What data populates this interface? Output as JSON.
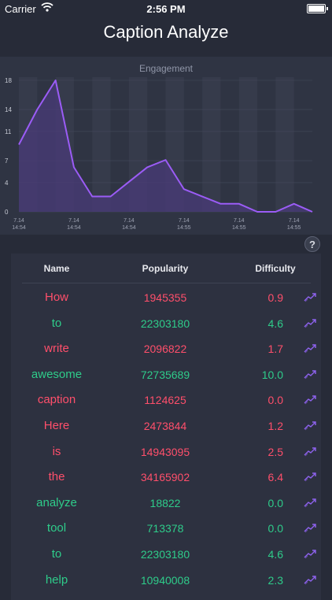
{
  "status_bar": {
    "carrier": "Carrier",
    "time": "2:56 PM"
  },
  "nav": {
    "title": "Caption Analyze"
  },
  "colors": {
    "good": "#2ecc8a",
    "bad": "#ff4f6b",
    "line": "#9b5cf6",
    "fill": "#4a3b78",
    "trend_icon": "#8f63f0"
  },
  "chart_data": {
    "type": "area",
    "title": "Engagement",
    "xlabel": "",
    "ylabel": "",
    "ylim": [
      0,
      18
    ],
    "y_ticks": [
      "0",
      "4",
      "7",
      "11",
      "14",
      "18"
    ],
    "x_tick_labels": [
      {
        "index": 0,
        "line1": "7.14",
        "line2": "14:54"
      },
      {
        "index": 3,
        "line1": "7.14",
        "line2": "14:54"
      },
      {
        "index": 6,
        "line1": "7.14",
        "line2": "14:54"
      },
      {
        "index": 9,
        "line1": "7.14",
        "line2": "14:55"
      },
      {
        "index": 12,
        "line1": "7.14",
        "line2": "14:55"
      },
      {
        "index": 15,
        "line1": "7.14",
        "line2": "14:55"
      }
    ],
    "grid": true,
    "values": [
      9.2,
      14,
      18,
      6.1,
      2.1,
      2.1,
      4.1,
      6.1,
      7.1,
      3.1,
      2.1,
      1.1,
      1.1,
      0,
      0,
      1.1,
      0
    ]
  },
  "help_button": {
    "label": "?",
    "icon": "help-icon"
  },
  "table": {
    "headers": {
      "name": "Name",
      "popularity": "Popularity",
      "difficulty": "Difficulty"
    },
    "trend_icon": "trend-up-icon",
    "rows": [
      {
        "name": "How",
        "popularity": "1945355",
        "difficulty": "0.9",
        "status": "bad"
      },
      {
        "name": "to",
        "popularity": "22303180",
        "difficulty": "4.6",
        "status": "good"
      },
      {
        "name": "write",
        "popularity": "2096822",
        "difficulty": "1.7",
        "status": "bad"
      },
      {
        "name": "awesome",
        "popularity": "72735689",
        "difficulty": "10.0",
        "status": "good"
      },
      {
        "name": "caption",
        "popularity": "1124625",
        "difficulty": "0.0",
        "status": "bad"
      },
      {
        "name": "Here",
        "popularity": "2473844",
        "difficulty": "1.2",
        "status": "bad"
      },
      {
        "name": "is",
        "popularity": "14943095",
        "difficulty": "2.5",
        "status": "bad"
      },
      {
        "name": "the",
        "popularity": "34165902",
        "difficulty": "6.4",
        "status": "bad"
      },
      {
        "name": "analyze",
        "popularity": "18822",
        "difficulty": "0.0",
        "status": "good"
      },
      {
        "name": "tool",
        "popularity": "713378",
        "difficulty": "0.0",
        "status": "good"
      },
      {
        "name": "to",
        "popularity": "22303180",
        "difficulty": "4.6",
        "status": "good"
      },
      {
        "name": "help",
        "popularity": "10940008",
        "difficulty": "2.3",
        "status": "good"
      }
    ]
  }
}
